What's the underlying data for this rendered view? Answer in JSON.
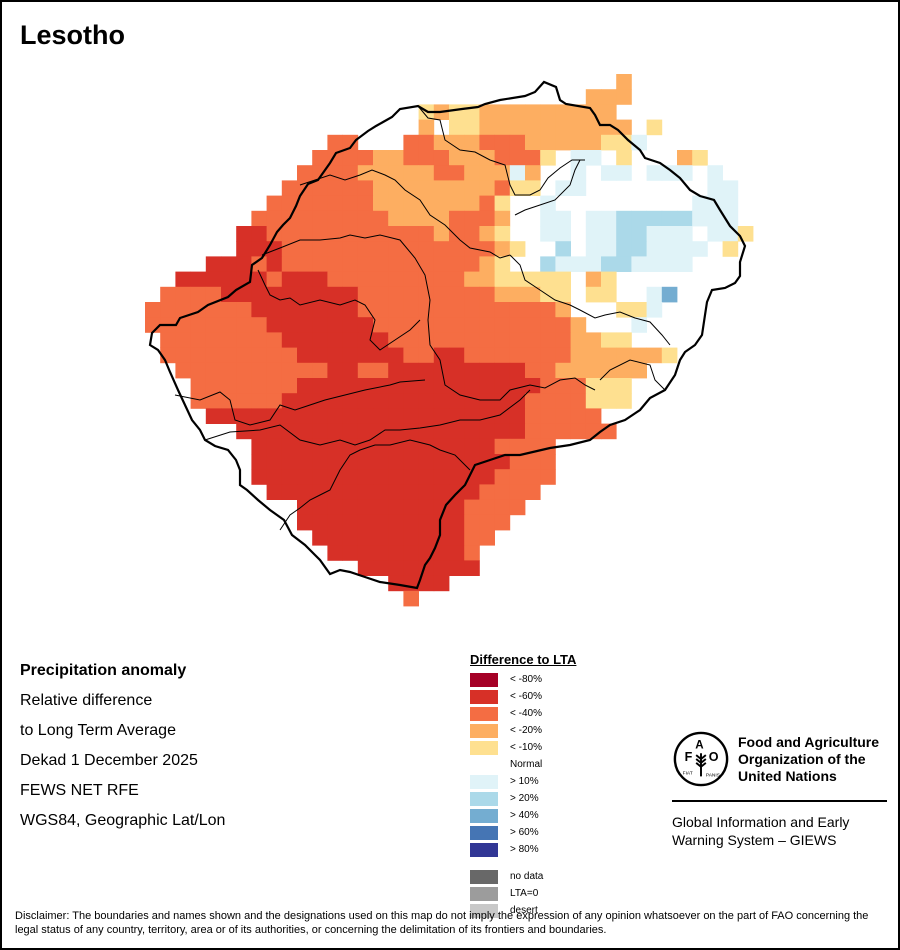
{
  "title": "Lesotho",
  "info": {
    "heading": "Precipitation anomaly",
    "lines": [
      "Relative difference",
      "to Long Term Average",
      "Dekad 1 December 2025",
      "FEWS NET RFE",
      "WGS84, Geographic Lat/Lon"
    ]
  },
  "legend": {
    "title": "Difference to LTA",
    "items": [
      {
        "key": "1",
        "label": "< -80%",
        "color": "#A50026"
      },
      {
        "key": "2",
        "label": "< -60%",
        "color": "#D73027"
      },
      {
        "key": "3",
        "label": "< -40%",
        "color": "#F46D43"
      },
      {
        "key": "4",
        "label": "< -20%",
        "color": "#FDAE61"
      },
      {
        "key": "5",
        "label": "< -10%",
        "color": "#FEE090"
      },
      {
        "key": "N",
        "label": "Normal",
        "color": "#FFFFFF"
      },
      {
        "key": "a",
        "label": "> 10%",
        "color": "#E0F3F8"
      },
      {
        "key": "b",
        "label": "> 20%",
        "color": "#ABD9E9"
      },
      {
        "key": "c",
        "label": "> 40%",
        "color": "#74ADD1"
      },
      {
        "key": "d",
        "label": "> 60%",
        "color": "#4575B4"
      },
      {
        "key": "e",
        "label": "> 80%",
        "color": "#313695"
      }
    ],
    "extra": [
      {
        "label": "no data",
        "color": "#686868"
      },
      {
        "label": "LTA=0",
        "color": "#9C9C9C"
      },
      {
        "label": "desert",
        "color": "#C8C8C8"
      }
    ]
  },
  "org": {
    "name": "Food and Agriculture Organization of the United Nations",
    "logo_top": "FAO",
    "logo_motto": "FIAT PANIS",
    "system": "Global Information and Early Warning System – GIEWS"
  },
  "disclaimer": "Disclaimer: The boundaries and names shown and the designations used on this map do not imply the expression of any opinion whatsoever on the part of FAO concerning the legal status of any country, territory, area or of its authorities, or concerning the delimitation of its frontiers and boundaries.",
  "map_grid": {
    "description": "Anomaly category per raster cell, rows north to south, columns west to east; '.' = outside country",
    "rows": [
      "...............................4........",
      ".............................444........",
      "..................5455444444444.........",
      "..................4.554444444444.5......",
      "............33...334443334444455a......",
      "...........3333443334443335NaaN5N..45...",
      "..........33334444433444a4NNaNaaNaaaNa..",
      ".........33333344444444355NaaNNNNNNNNaa.",
      "........3333333444444435NNaNNNNNNNNNaaa.",
      ".......33333333344443334NNaaNaabbbbbaaa.",
      "......223333333333343345NNaaNaabbaaaNaa5",
      "......2223333333333333345NNbNaabbaaaaN5.",
      "....22232333333333333345NNbaaabbaaaaNN..",
      "..22222232223333333334455555N45NN.......",
      ".333322222222233333333344455N55NNac.....",
      "3333333222222233333333333334NNN55aNN....",
      "33333333222222233333333333334NNNaNN.....",
      ".3333333322222223333333333334455NNNN....",
      ".3333333332222222332233333334444445.....",
      "..3333333333223322222222233444444N......",
      "...33333332222222222222222333555NN......",
      "...33333322222222222222223333555N.......",
      "....22222222222222222222233333..........",
      "......2222222222222222222333333.........",
      ".......22222222222222223333.............",
      ".......22222222222222222333.............",
      ".......22222222222222223333.............",
      "........222222222222223333..............",
      "..........222222222223333...............",
      "..........22222222222333................",
      "...........222222222233.................",
      "............2222222223..................",
      "..............22222222..................",
      "................2222....................",
      ".................3......................"
    ]
  }
}
